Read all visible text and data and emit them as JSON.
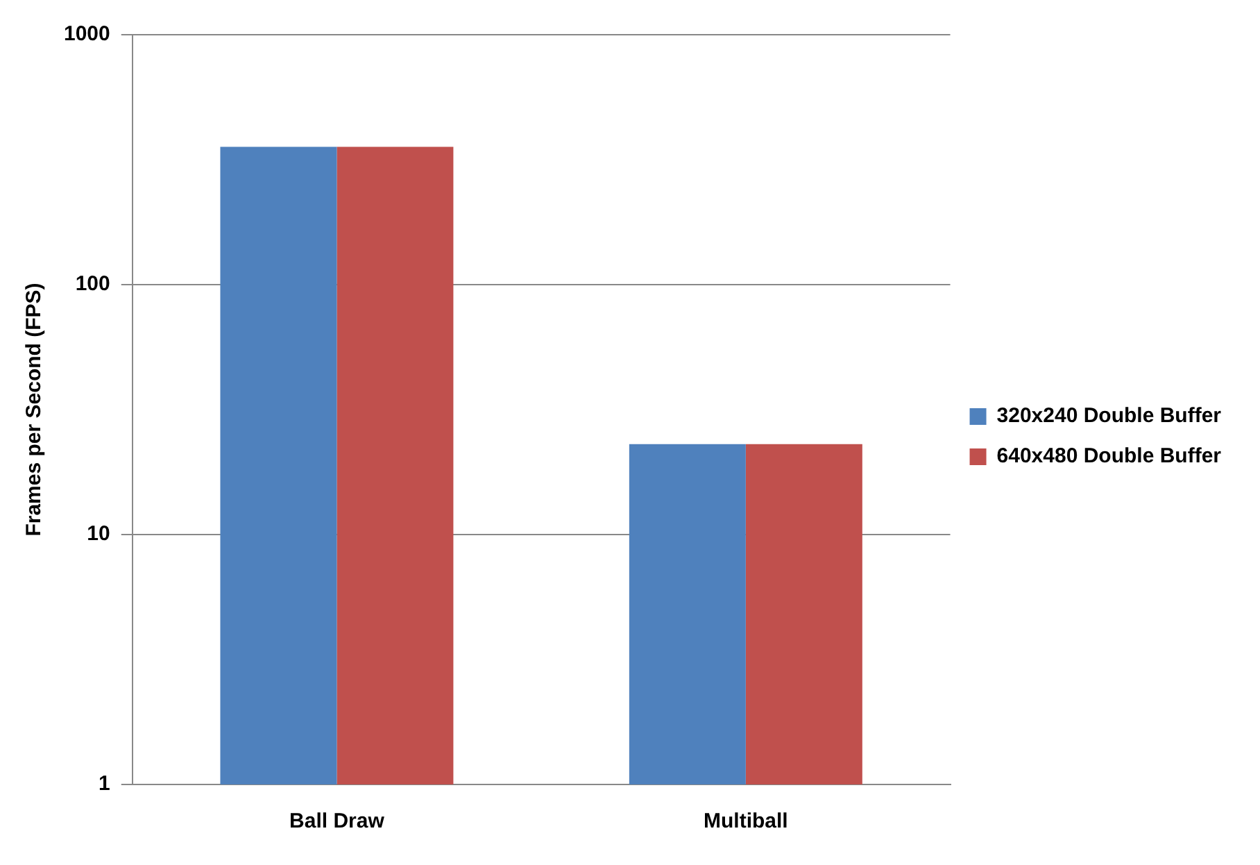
{
  "chart_data": {
    "type": "bar",
    "ylabel": "Frames per Second (FPS)",
    "categories": [
      "Ball Draw",
      "Multiball"
    ],
    "series": [
      {
        "name": "320x240 Double Buffer",
        "color": "#4f81bd",
        "values": [
          356,
          23
        ]
      },
      {
        "name": "640x480 Double Buffer",
        "color": "#c0504d",
        "values": [
          356,
          23
        ]
      }
    ],
    "log": true,
    "ylim": [
      1,
      1000
    ],
    "yticks": [
      1,
      10,
      100,
      1000
    ],
    "grid": "y",
    "legend": "right"
  }
}
